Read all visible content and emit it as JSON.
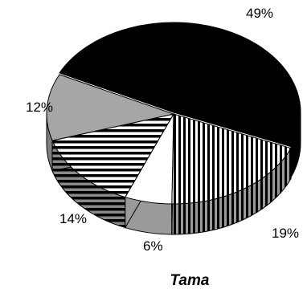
{
  "chart_data": {
    "type": "pie",
    "title": "Tama",
    "style": "3d-exploded-pie",
    "legend": "none",
    "slices": [
      {
        "label": "49%",
        "value": 49,
        "fill": "#000000",
        "pattern": "solid"
      },
      {
        "label": "19%",
        "value": 19,
        "fill": "#ffffff",
        "pattern": "vertical-stripes"
      },
      {
        "label": "6%",
        "value": 6,
        "fill": "#ffffff",
        "pattern": "solid"
      },
      {
        "label": "14%",
        "value": 14,
        "fill": "#ffffff",
        "pattern": "horizontal-stripes"
      },
      {
        "label": "12%",
        "value": 12,
        "fill": "#a6a6a6",
        "pattern": "solid"
      }
    ]
  }
}
